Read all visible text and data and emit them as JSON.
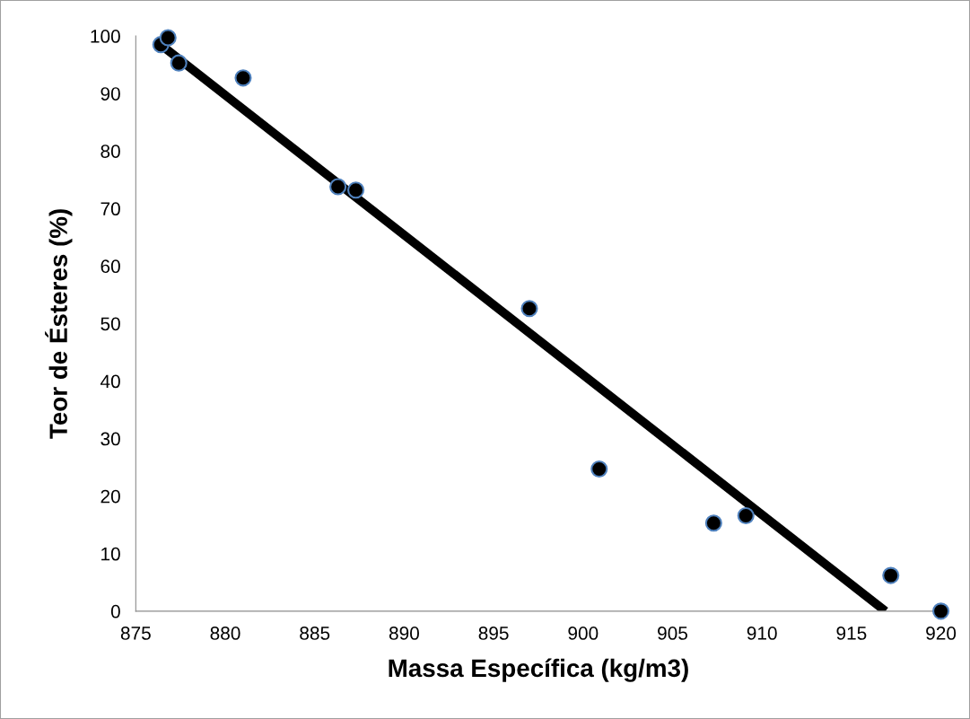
{
  "chart_data": {
    "type": "scatter",
    "xlabel": "Massa Específica (kg/m3)",
    "ylabel": "Teor de Ésteres (%)",
    "xlim": [
      875,
      920
    ],
    "xticks": [
      875,
      880,
      885,
      890,
      895,
      900,
      905,
      910,
      915,
      920
    ],
    "ylim": [
      0,
      100
    ],
    "yticks": [
      0,
      10,
      20,
      30,
      40,
      50,
      60,
      70,
      80,
      90,
      100
    ],
    "grid": false,
    "legend": false,
    "series": [
      {
        "color": "#000000",
        "marker": "circle",
        "x": [
          876.4,
          876.8,
          877.4,
          881.0,
          886.3,
          887.3,
          897.0,
          900.9,
          907.3,
          909.1,
          917.2,
          920.0
        ],
        "values": [
          98.5,
          99.7,
          95.3,
          92.7,
          73.8,
          73.2,
          52.6,
          24.7,
          15.3,
          16.6,
          6.2,
          0
        ]
      },
      {
        "type": "line",
        "color": "#000000",
        "line_style": "solid",
        "x": [
          876.3,
          916.9
        ],
        "values": [
          98.7,
          0
        ]
      }
    ]
  }
}
